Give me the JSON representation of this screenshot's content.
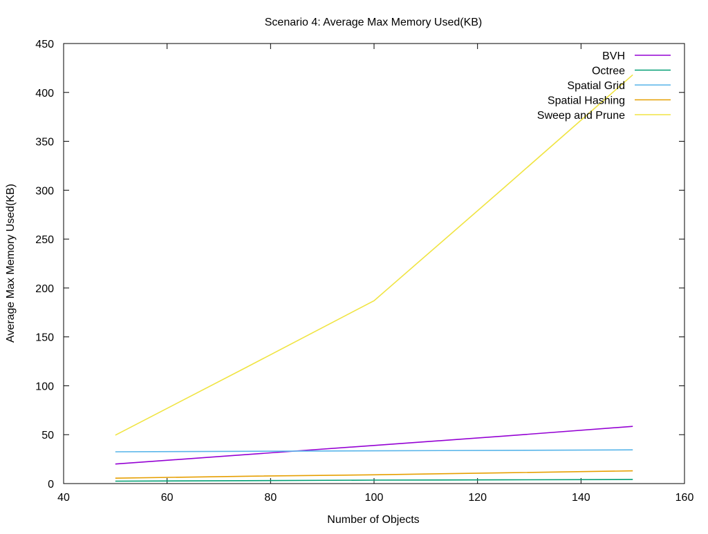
{
  "chart_data": {
    "type": "line",
    "title": "Scenario 4: Average Max Memory Used(KB)",
    "xlabel": "Number of Objects",
    "ylabel": "Average Max Memory Used(KB)",
    "xlim": [
      40,
      160
    ],
    "ylim": [
      0,
      450
    ],
    "x_ticks": [
      40,
      60,
      80,
      100,
      120,
      140,
      160
    ],
    "y_ticks": [
      0,
      50,
      100,
      150,
      200,
      250,
      300,
      350,
      400,
      450
    ],
    "grid": false,
    "legend_position": "top-right",
    "x": [
      50,
      75,
      100,
      125,
      150
    ],
    "series": [
      {
        "name": "BVH",
        "color": "#9400d3",
        "values": [
          20,
          29.5,
          39,
          48.5,
          58.5
        ]
      },
      {
        "name": "Octree",
        "color": "#009e73",
        "values": [
          2.5,
          3,
          3.5,
          3.8,
          4.2
        ]
      },
      {
        "name": "Spatial Grid",
        "color": "#56b4e9",
        "values": [
          32.5,
          33,
          33.5,
          34,
          34.5
        ]
      },
      {
        "name": "Spatial Hashing",
        "color": "#e69f00",
        "values": [
          5.5,
          7.5,
          9,
          11,
          13
        ]
      },
      {
        "name": "Sweep and Prune",
        "color": "#f0e442",
        "values": [
          49.5,
          118,
          187,
          302,
          418
        ]
      }
    ]
  }
}
